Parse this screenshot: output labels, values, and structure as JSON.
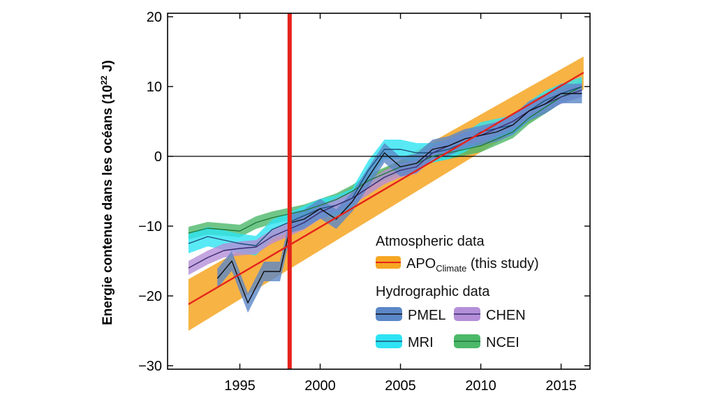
{
  "chart_data": {
    "type": "line",
    "ylabel_main": "Energie contenue dans les océans (10",
    "ylabel_exp": "22",
    "ylabel_unit": " J)",
    "xlim": [
      1990.5,
      2016.8
    ],
    "ylim": [
      -30.5,
      20.5
    ],
    "xticks": [
      1995,
      2000,
      2005,
      2010,
      2015
    ],
    "yticks": [
      -30,
      -20,
      -10,
      0,
      10,
      20
    ],
    "zero_line": 0,
    "marker_year": 1998.1,
    "marker_color": "#e5231b",
    "legend": {
      "atmo_title": "Atmospheric data",
      "apo_label": "APO",
      "apo_sub": "Climate",
      "apo_suffix": " (this study)",
      "hydro_title": "Hydrographic data"
    },
    "apo_fit": {
      "name": "APO",
      "color": "#e5231b",
      "band_color": "#f6a623",
      "x": [
        1991.8,
        2016.4
      ],
      "y": [
        -21.2,
        12.0
      ],
      "upper": [
        -17.6,
        14.3
      ],
      "lower": [
        -25.0,
        9.6
      ]
    },
    "series": [
      {
        "name": "NCEI",
        "color": "#1e7b3c",
        "band_color": "#4cb86a",
        "x": [
          1991.8,
          1993,
          1994,
          1995,
          1996,
          1997,
          1998,
          1999,
          2000,
          2001,
          2002,
          2003,
          2004,
          2005,
          2006,
          2007,
          2008,
          2009,
          2010,
          2011,
          2012,
          2013,
          2014,
          2015,
          2016.3
        ],
        "y": [
          -11.0,
          -10.3,
          -10.5,
          -10.7,
          -9.5,
          -8.8,
          -8.3,
          -7.8,
          -7.0,
          -6.2,
          -5.0,
          -3.5,
          -2.5,
          -1.5,
          -1.0,
          0.0,
          0.5,
          1.0,
          1.5,
          2.5,
          3.5,
          5.5,
          7.0,
          8.5,
          10.0
        ],
        "half_width": 0.9
      },
      {
        "name": "MRI",
        "color": "#1a4f7a",
        "band_color": "#2ee3f3",
        "x": [
          1991.8,
          1993,
          1994,
          1995,
          1996,
          1997,
          1998,
          1999,
          2000,
          2001,
          2002,
          2003,
          2004,
          2005,
          2006,
          2007,
          2008,
          2009,
          2010,
          2011,
          2012,
          2013,
          2014,
          2015,
          2016.3
        ],
        "y": [
          -12.5,
          -11.5,
          -12.0,
          -12.5,
          -12.8,
          -10.5,
          -9.5,
          -8.5,
          -7.5,
          -7.0,
          -6.0,
          -2.0,
          1.0,
          1.0,
          0.5,
          0.5,
          1.0,
          2.0,
          3.5,
          4.0,
          4.5,
          6.5,
          8.0,
          9.0,
          10.0
        ],
        "half_width": 1.4
      },
      {
        "name": "CHEN",
        "color": "#3b2a6e",
        "band_color": "#b48fd8",
        "x": [
          1991.8,
          1993,
          1994,
          1995,
          1996,
          1997,
          1998,
          1999,
          2000,
          2001,
          2002,
          2003,
          2004,
          2005,
          2006,
          2007,
          2008,
          2009,
          2010,
          2011,
          2012,
          2013,
          2014,
          2015,
          2016.3
        ],
        "y": [
          -16.0,
          -14.5,
          -13.5,
          -13.2,
          -13.0,
          -11.5,
          -10.5,
          -9.5,
          -8.0,
          -7.0,
          -6.0,
          -4.5,
          -3.0,
          -2.0,
          -1.5,
          0.5,
          1.5,
          2.5,
          3.0,
          4.0,
          5.0,
          6.5,
          7.5,
          8.5,
          9.5
        ],
        "half_width": 1.0
      },
      {
        "name": "PMEL",
        "color": "#101010",
        "band_color": "#5b87c8",
        "x": [
          1993.6,
          1994.5,
          1995.5,
          1996.5,
          1997.5,
          1998.2,
          1999,
          2000,
          2001,
          2002,
          2003,
          2004,
          2005,
          2006,
          2007,
          2008,
          2009,
          2010,
          2011,
          2012,
          2013,
          2014,
          2015,
          2016.3
        ],
        "y": [
          -17.5,
          -15.0,
          -21.0,
          -16.5,
          -16.5,
          -9.5,
          -9.0,
          -7.5,
          -9.0,
          -6.5,
          -3.0,
          0.5,
          -1.5,
          -1.0,
          1.0,
          1.5,
          2.5,
          3.0,
          3.5,
          4.5,
          6.5,
          7.5,
          9.0,
          9.0
        ],
        "half_width": 1.4
      }
    ]
  }
}
